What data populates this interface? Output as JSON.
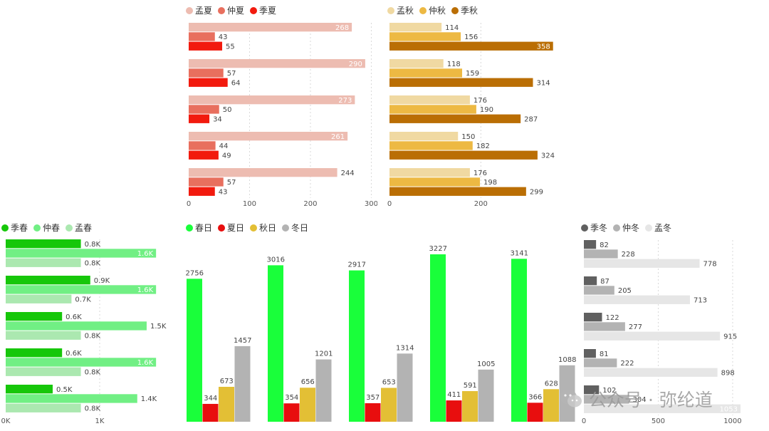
{
  "chart_data": [
    {
      "type": "bar",
      "orientation": "horizontal",
      "id": "summer",
      "series": [
        {
          "name": "孟夏",
          "color": "#EDBCB1",
          "values": [
            268,
            290,
            273,
            261,
            244
          ]
        },
        {
          "name": "仲夏",
          "color": "#E86F5E",
          "values": [
            43,
            57,
            50,
            44,
            57
          ]
        },
        {
          "name": "季夏",
          "color": "#F21A0E",
          "values": [
            55,
            64,
            34,
            49,
            43
          ]
        }
      ],
      "xlim": [
        0,
        310
      ],
      "xticks": [
        "0",
        "100",
        "200",
        "300"
      ],
      "grid": true,
      "legend": "top-left"
    },
    {
      "type": "bar",
      "orientation": "horizontal",
      "id": "autumn",
      "series": [
        {
          "name": "孟秋",
          "color": "#F0D9A2",
          "values": [
            114,
            118,
            176,
            150,
            176
          ]
        },
        {
          "name": "仲秋",
          "color": "#EDB943",
          "values": [
            156,
            159,
            190,
            182,
            198
          ]
        },
        {
          "name": "季秋",
          "color": "#BA6E04",
          "values": [
            358,
            314,
            287,
            324,
            299
          ]
        }
      ],
      "xlim": [
        0,
        360
      ],
      "xticks": [
        "0",
        "200"
      ],
      "grid": true,
      "legend": "top-left"
    },
    {
      "type": "bar",
      "orientation": "horizontal",
      "id": "spring",
      "series": [
        {
          "name": "季春",
          "color": "#16C70A",
          "values": [
            0.8,
            0.9,
            0.6,
            0.6,
            0.5
          ]
        },
        {
          "name": "仲春",
          "color": "#71EF84",
          "values": [
            1.6,
            1.6,
            1.5,
            1.6,
            1.4
          ]
        },
        {
          "name": "孟春",
          "color": "#ABE8B0",
          "values": [
            0.8,
            0.7,
            0.8,
            0.8,
            0.8
          ]
        }
      ],
      "value_unit": "K",
      "xlim": [
        0,
        1.72
      ],
      "xticks": [
        "0K",
        "1K"
      ],
      "grid": true,
      "legend": "top-left"
    },
    {
      "type": "bar",
      "orientation": "vertical",
      "id": "days",
      "categories": [
        "",
        "",
        "",
        "",
        ""
      ],
      "series": [
        {
          "name": "春日",
          "color": "#19FF3A",
          "values": [
            2756,
            3016,
            2917,
            3227,
            3141
          ]
        },
        {
          "name": "夏日",
          "color": "#E80E0E",
          "values": [
            344,
            354,
            357,
            411,
            366
          ]
        },
        {
          "name": "秋日",
          "color": "#E3BF35",
          "values": [
            673,
            656,
            653,
            591,
            628
          ]
        },
        {
          "name": "冬日",
          "color": "#B3B3B3",
          "values": [
            1457,
            1201,
            1314,
            1005,
            1088
          ]
        }
      ],
      "ylim": [
        0,
        3227
      ],
      "legend": "top-left"
    },
    {
      "type": "bar",
      "orientation": "horizontal",
      "id": "winter",
      "series": [
        {
          "name": "季冬",
          "color": "#606060",
          "values": [
            82,
            87,
            122,
            81,
            102
          ]
        },
        {
          "name": "仲冬",
          "color": "#B3B3B3",
          "values": [
            228,
            205,
            277,
            222,
            304
          ]
        },
        {
          "name": "孟冬",
          "color": "#E6E6E6",
          "values": [
            778,
            713,
            915,
            898,
            1053
          ]
        }
      ],
      "xlim": [
        0,
        1053
      ],
      "xticks": [
        "0",
        "500",
        "1000"
      ],
      "grid": true,
      "legend": "top-left"
    }
  ],
  "watermark": {
    "text": "公众号 · 弥纶道",
    "icon": "wechat-icon"
  }
}
